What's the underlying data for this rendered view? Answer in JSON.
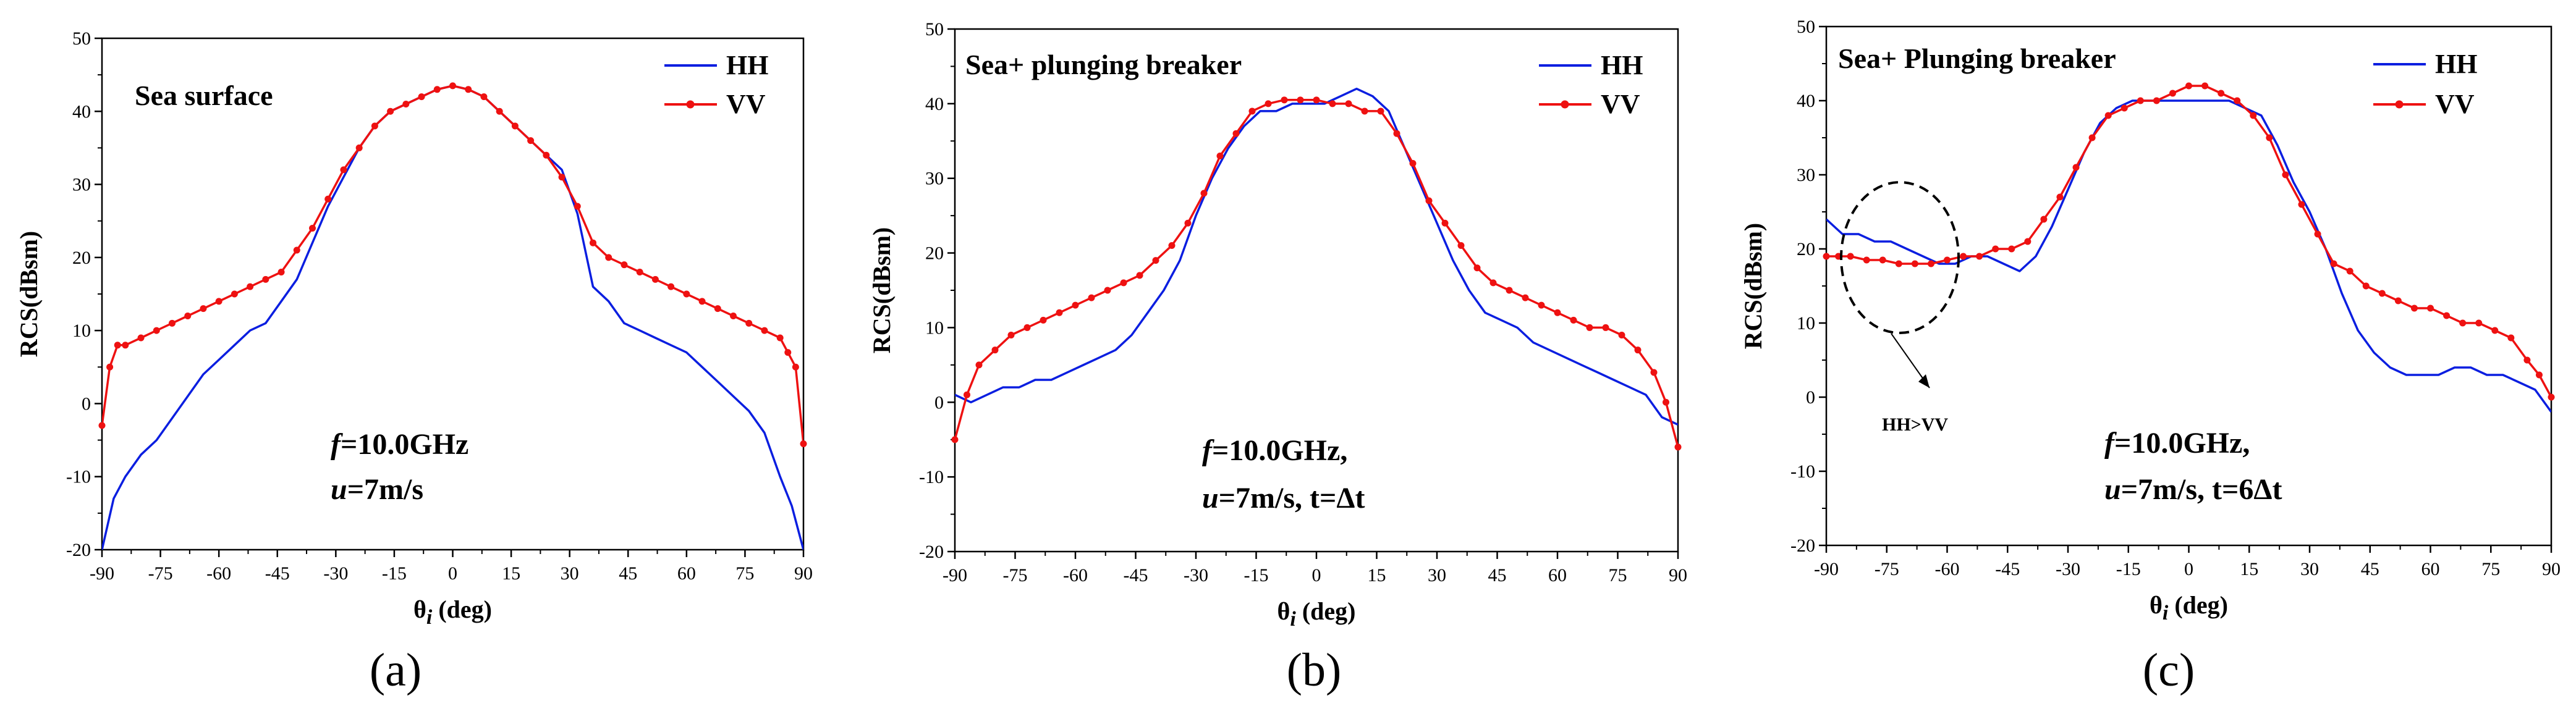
{
  "colors": {
    "hh": "#0a1ee0",
    "vv": "#ee1111",
    "axis": "#000000",
    "background": "#ffffff"
  },
  "chart_data": [
    {
      "type": "line",
      "panel_label": "a",
      "title": "Sea surface",
      "xlabel_base": "θ",
      "xlabel_sub": "i",
      "xlabel_unit": " (deg)",
      "ylabel": "RCS(dBsm)",
      "xlim": [
        -90,
        90
      ],
      "ylim": [
        -20,
        50
      ],
      "xticks": [
        -90,
        -75,
        -60,
        -45,
        -30,
        -15,
        0,
        15,
        30,
        45,
        60,
        75,
        90
      ],
      "yticks": [
        -20,
        -10,
        0,
        10,
        20,
        30,
        40,
        50
      ],
      "annotation": {
        "f_sym": "f",
        "f_rest": "=10.0GHz",
        "u_sym": "u",
        "u_rest": "=7m/s"
      },
      "legend": [
        "HH",
        "VV"
      ],
      "series": [
        {
          "name": "HH",
          "x": [
            -90,
            -87,
            -84,
            -80,
            -76,
            -72,
            -68,
            -64,
            -60,
            -56,
            -52,
            -48,
            -44,
            -40,
            -36,
            -32,
            -28,
            -24,
            -20,
            -16,
            -12,
            -8,
            -4,
            0,
            4,
            8,
            12,
            16,
            20,
            24,
            28,
            32,
            36,
            40,
            44,
            48,
            52,
            56,
            60,
            64,
            68,
            72,
            76,
            80,
            84,
            87,
            90
          ],
          "y": [
            -20,
            -13,
            -10,
            -7,
            -5,
            -2,
            1,
            4,
            6,
            8,
            10,
            11,
            14,
            17,
            22,
            27,
            31,
            35,
            38,
            40,
            41,
            42,
            43,
            43.5,
            43,
            42,
            40,
            38,
            36,
            34,
            32,
            26,
            16,
            14,
            11,
            10,
            9,
            8,
            7,
            5,
            3,
            1,
            -1,
            -4,
            -10,
            -14,
            -20
          ]
        },
        {
          "name": "VV",
          "x": [
            -90,
            -88,
            -86,
            -84,
            -80,
            -76,
            -72,
            -68,
            -64,
            -60,
            -56,
            -52,
            -48,
            -44,
            -40,
            -36,
            -32,
            -28,
            -24,
            -20,
            -16,
            -12,
            -8,
            -4,
            0,
            4,
            8,
            12,
            16,
            20,
            24,
            28,
            32,
            36,
            40,
            44,
            48,
            52,
            56,
            60,
            64,
            68,
            72,
            76,
            80,
            84,
            86,
            88,
            90
          ],
          "y": [
            -3,
            5,
            8,
            8,
            9,
            10,
            11,
            12,
            13,
            14,
            15,
            16,
            17,
            18,
            21,
            24,
            28,
            32,
            35,
            38,
            40,
            41,
            42,
            43,
            43.5,
            43,
            42,
            40,
            38,
            36,
            34,
            31,
            27,
            22,
            20,
            19,
            18,
            17,
            16,
            15,
            14,
            13,
            12,
            11,
            10,
            9,
            7,
            5,
            -5.5
          ]
        }
      ]
    },
    {
      "type": "line",
      "panel_label": "b",
      "title": "Sea+ plunging breaker",
      "xlabel_base": "θ",
      "xlabel_sub": "i",
      "xlabel_unit": " (deg)",
      "ylabel": "RCS(dBsm)",
      "xlim": [
        -90,
        90
      ],
      "ylim": [
        -20,
        50
      ],
      "xticks": [
        -90,
        -75,
        -60,
        -45,
        -30,
        -15,
        0,
        15,
        30,
        45,
        60,
        75,
        90
      ],
      "yticks": [
        -20,
        -10,
        0,
        10,
        20,
        30,
        40,
        50
      ],
      "annotation": {
        "f_sym": "f",
        "f_rest": "=10.0GHz,",
        "u_sym": "u",
        "u_rest": "=7m/s, t=Δt"
      },
      "legend": [
        "HH",
        "VV"
      ],
      "series": [
        {
          "name": "HH",
          "x": [
            -90,
            -86,
            -82,
            -78,
            -74,
            -70,
            -66,
            -62,
            -58,
            -54,
            -50,
            -46,
            -42,
            -38,
            -34,
            -30,
            -26,
            -22,
            -18,
            -14,
            -10,
            -6,
            -2,
            2,
            6,
            10,
            14,
            18,
            22,
            26,
            30,
            34,
            38,
            42,
            46,
            50,
            54,
            58,
            62,
            66,
            70,
            74,
            78,
            82,
            86,
            90
          ],
          "y": [
            1,
            0,
            1,
            2,
            2,
            3,
            3,
            4,
            5,
            6,
            7,
            9,
            12,
            15,
            19,
            25,
            30,
            34,
            37,
            39,
            39,
            40,
            40,
            40,
            41,
            42,
            41,
            39,
            34,
            29,
            24,
            19,
            15,
            12,
            11,
            10,
            8,
            7,
            6,
            5,
            4,
            3,
            2,
            1,
            -2,
            -3
          ]
        },
        {
          "name": "VV",
          "x": [
            -90,
            -87,
            -84,
            -80,
            -76,
            -72,
            -68,
            -64,
            -60,
            -56,
            -52,
            -48,
            -44,
            -40,
            -36,
            -32,
            -28,
            -24,
            -20,
            -16,
            -12,
            -8,
            -4,
            0,
            4,
            8,
            12,
            16,
            20,
            24,
            28,
            32,
            36,
            40,
            44,
            48,
            52,
            56,
            60,
            64,
            68,
            72,
            76,
            80,
            84,
            87,
            90
          ],
          "y": [
            -5,
            1,
            5,
            7,
            9,
            10,
            11,
            12,
            13,
            14,
            15,
            16,
            17,
            19,
            21,
            24,
            28,
            33,
            36,
            39,
            40,
            40.5,
            40.5,
            40.5,
            40,
            40,
            39,
            39,
            36,
            32,
            27,
            24,
            21,
            18,
            16,
            15,
            14,
            13,
            12,
            11,
            10,
            10,
            9,
            7,
            4,
            0,
            -6
          ]
        }
      ]
    },
    {
      "type": "line",
      "panel_label": "c",
      "title": "Sea+ Plunging breaker",
      "xlabel_base": "θ",
      "xlabel_sub": "i",
      "xlabel_unit": " (deg)",
      "ylabel": "RCS(dBsm)",
      "xlim": [
        -90,
        90
      ],
      "ylim": [
        -20,
        50
      ],
      "xticks": [
        -90,
        -75,
        -60,
        -45,
        -30,
        -15,
        0,
        15,
        30,
        45,
        60,
        75,
        90
      ],
      "yticks": [
        -20,
        -10,
        0,
        10,
        20,
        30,
        40,
        50
      ],
      "annotation": {
        "f_sym": "f",
        "f_rest": "=10.0GHz,",
        "u_sym": "u",
        "u_rest": "=7m/s, t=6Δt"
      },
      "callout": "HH>VV",
      "legend": [
        "HH",
        "VV"
      ],
      "series": [
        {
          "name": "HH",
          "x": [
            -90,
            -86,
            -82,
            -78,
            -74,
            -70,
            -66,
            -62,
            -58,
            -54,
            -50,
            -46,
            -42,
            -38,
            -34,
            -30,
            -26,
            -22,
            -18,
            -14,
            -10,
            -6,
            -2,
            2,
            6,
            10,
            14,
            18,
            22,
            26,
            30,
            34,
            38,
            42,
            46,
            50,
            54,
            58,
            62,
            66,
            70,
            74,
            78,
            82,
            86,
            90
          ],
          "y": [
            24,
            22,
            22,
            21,
            21,
            20,
            19,
            18,
            18,
            19,
            19,
            18,
            17,
            19,
            23,
            28,
            33,
            37,
            39,
            40,
            40,
            40,
            40,
            40,
            40,
            40,
            39,
            38,
            34,
            29,
            25,
            20,
            14,
            9,
            6,
            4,
            3,
            3,
            3,
            4,
            4,
            3,
            3,
            2,
            1,
            -2
          ]
        },
        {
          "name": "VV",
          "x": [
            -90,
            -87,
            -84,
            -80,
            -76,
            -72,
            -68,
            -64,
            -60,
            -56,
            -52,
            -48,
            -44,
            -40,
            -36,
            -32,
            -28,
            -24,
            -20,
            -16,
            -12,
            -8,
            -4,
            0,
            4,
            8,
            12,
            16,
            20,
            24,
            28,
            32,
            36,
            40,
            44,
            48,
            52,
            56,
            60,
            64,
            68,
            72,
            76,
            80,
            84,
            87,
            90
          ],
          "y": [
            19,
            19,
            19,
            18.5,
            18.5,
            18,
            18,
            18,
            18.5,
            19,
            19,
            20,
            20,
            21,
            24,
            27,
            31,
            35,
            38,
            39,
            40,
            40,
            41,
            42,
            42,
            41,
            40,
            38,
            35,
            30,
            26,
            22,
            18,
            17,
            15,
            14,
            13,
            12,
            12,
            11,
            10,
            10,
            9,
            8,
            5,
            3,
            0
          ]
        }
      ]
    }
  ]
}
